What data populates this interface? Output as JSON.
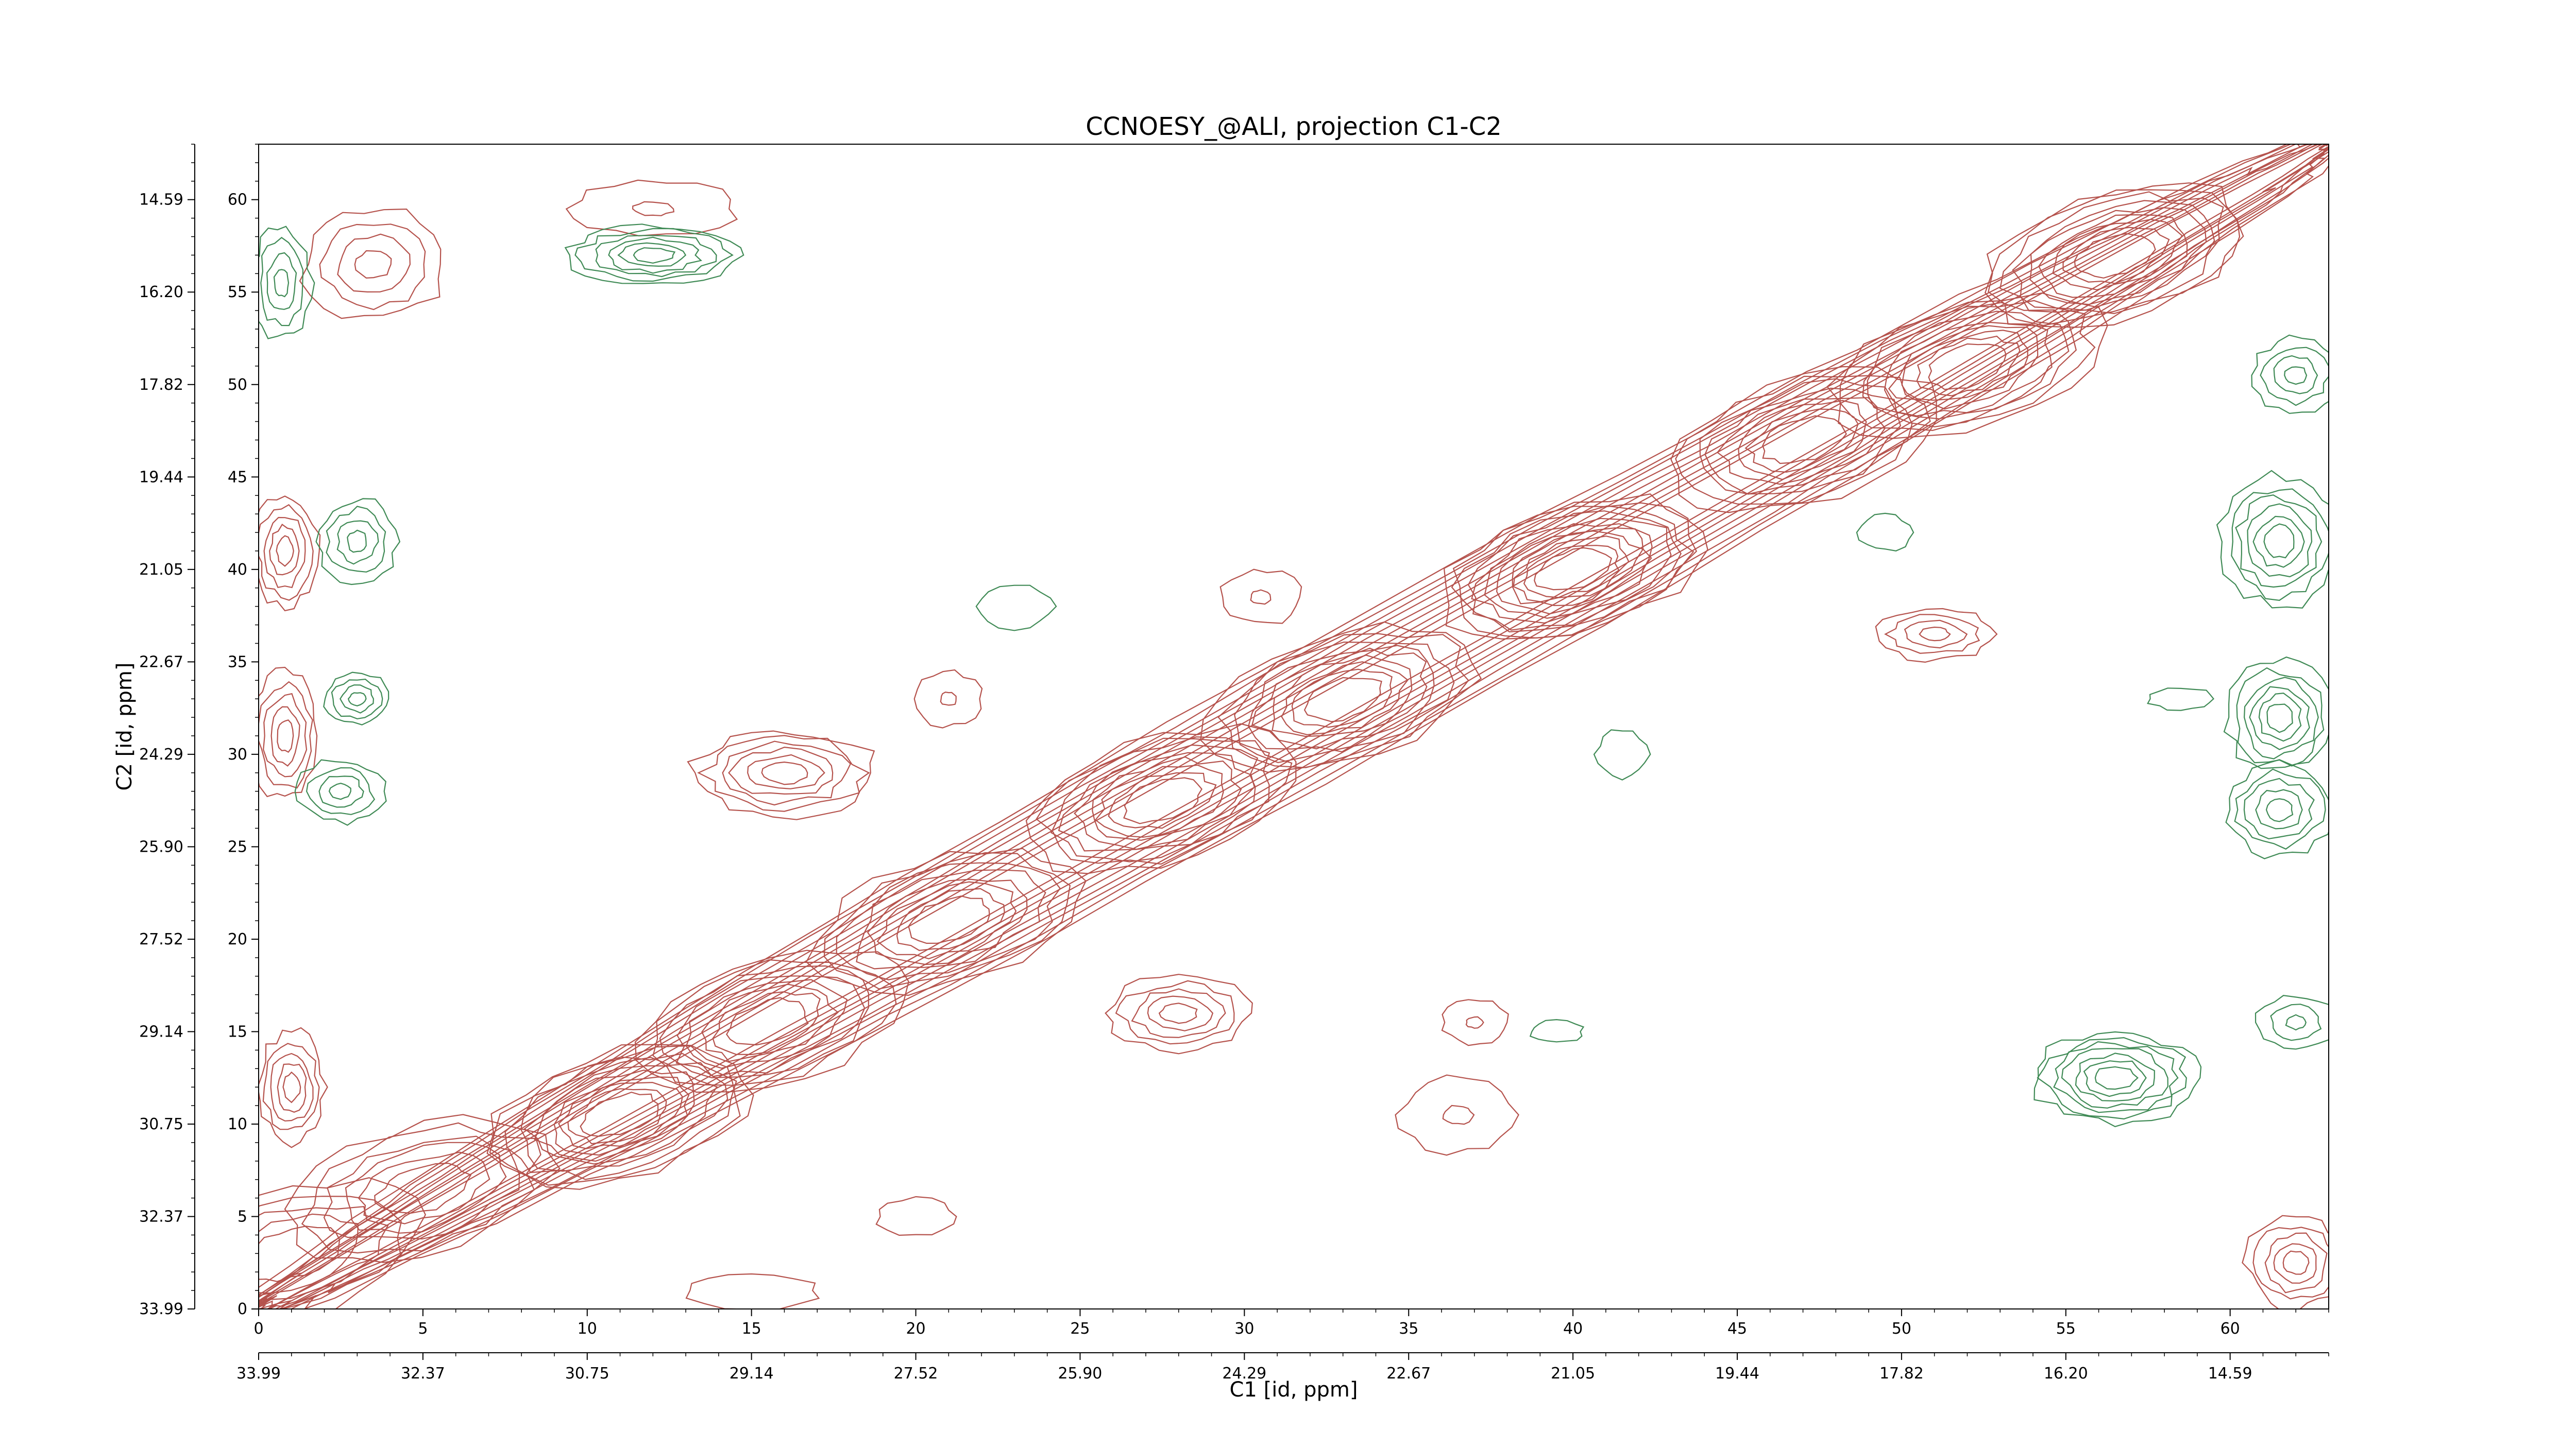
{
  "colors": {
    "positive": "#b5524c",
    "negative": "#3f8a55",
    "axis": "#000000",
    "background": "#ffffff"
  },
  "chart_data": {
    "type": "contour",
    "title": "CCNOESY_@ALI, projection C1-C2",
    "xlabel": "C1 [id, ppm]",
    "ylabel": "C2 [id, ppm]",
    "xlim": [
      0,
      63
    ],
    "ylim": [
      0,
      63
    ],
    "x_ticks": [
      0,
      5,
      10,
      15,
      20,
      25,
      30,
      35,
      40,
      45,
      50,
      55,
      60
    ],
    "y_ticks": [
      0,
      5,
      10,
      15,
      20,
      25,
      30,
      35,
      40,
      45,
      50,
      55,
      60
    ],
    "x_ppm_ticks": [
      {
        "pos": 0,
        "label": "33.99"
      },
      {
        "pos": 5,
        "label": "32.37"
      },
      {
        "pos": 10,
        "label": "30.75"
      },
      {
        "pos": 15,
        "label": "29.14"
      },
      {
        "pos": 20,
        "label": "27.52"
      },
      {
        "pos": 25,
        "label": "25.90"
      },
      {
        "pos": 30,
        "label": "24.29"
      },
      {
        "pos": 35,
        "label": "22.67"
      },
      {
        "pos": 40,
        "label": "21.05"
      },
      {
        "pos": 45,
        "label": "19.44"
      },
      {
        "pos": 50,
        "label": "17.82"
      },
      {
        "pos": 55,
        "label": "16.20"
      },
      {
        "pos": 60,
        "label": "14.59"
      }
    ],
    "y_ppm_ticks": [
      {
        "pos": 0,
        "label": "33.99"
      },
      {
        "pos": 5,
        "label": "32.37"
      },
      {
        "pos": 10,
        "label": "30.75"
      },
      {
        "pos": 15,
        "label": "29.14"
      },
      {
        "pos": 20,
        "label": "27.52"
      },
      {
        "pos": 25,
        "label": "25.90"
      },
      {
        "pos": 30,
        "label": "24.29"
      },
      {
        "pos": 35,
        "label": "22.67"
      },
      {
        "pos": 40,
        "label": "21.05"
      },
      {
        "pos": 45,
        "label": "19.44"
      },
      {
        "pos": 50,
        "label": "17.82"
      },
      {
        "pos": 55,
        "label": "16.20"
      },
      {
        "pos": 60,
        "label": "14.59"
      }
    ],
    "diagonal_peaks": [
      {
        "x": 1,
        "y": 3,
        "levels": 5
      },
      {
        "x": 5,
        "y": 6.5,
        "levels": 6
      },
      {
        "x": 11,
        "y": 10.5,
        "levels": 10
      },
      {
        "x": 15.5,
        "y": 15.5,
        "levels": 8
      },
      {
        "x": 21,
        "y": 21,
        "levels": 8
      },
      {
        "x": 27.5,
        "y": 27.5,
        "levels": 9
      },
      {
        "x": 33,
        "y": 33,
        "levels": 9
      },
      {
        "x": 40,
        "y": 40,
        "levels": 11
      },
      {
        "x": 47,
        "y": 47,
        "levels": 8
      },
      {
        "x": 52,
        "y": 51,
        "levels": 9
      },
      {
        "x": 56.5,
        "y": 57,
        "levels": 9
      }
    ],
    "positive_cross_peaks": [
      {
        "x": 3.5,
        "y": 56.5,
        "rx": 2.2,
        "ry": 3.0,
        "levels": 4
      },
      {
        "x": 16,
        "y": 29,
        "rx": 2.8,
        "ry": 2.3,
        "levels": 6
      },
      {
        "x": 28,
        "y": 16,
        "rx": 2.2,
        "ry": 2.0,
        "levels": 5
      },
      {
        "x": 51,
        "y": 36.5,
        "rx": 1.8,
        "ry": 1.4,
        "levels": 4
      },
      {
        "x": 12,
        "y": 59.5,
        "rx": 2.5,
        "ry": 1.5,
        "levels": 2
      },
      {
        "x": 21,
        "y": 33,
        "rx": 1.0,
        "ry": 1.5,
        "levels": 2
      },
      {
        "x": 30.5,
        "y": 38.5,
        "rx": 1.2,
        "ry": 1.5,
        "levels": 2
      },
      {
        "x": 37,
        "y": 15.5,
        "rx": 1.0,
        "ry": 1.2,
        "levels": 2
      },
      {
        "x": 36.5,
        "y": 10.5,
        "rx": 1.8,
        "ry": 2.0,
        "levels": 2
      },
      {
        "x": 20,
        "y": 5,
        "rx": 1.2,
        "ry": 1.0,
        "levels": 1
      },
      {
        "x": 15,
        "y": 1.0,
        "rx": 2.0,
        "ry": 1.0,
        "levels": 1
      },
      {
        "x": 62,
        "y": 2.5,
        "rx": 1.5,
        "ry": 2.5,
        "levels": 5
      },
      {
        "x": 1,
        "y": 12,
        "rx": 1.0,
        "ry": 3.0,
        "levels": 5
      },
      {
        "x": 0.8,
        "y": 41,
        "rx": 1.0,
        "ry": 3.0,
        "levels": 5
      },
      {
        "x": 0.8,
        "y": 31,
        "rx": 1.0,
        "ry": 3.5,
        "levels": 5
      }
    ],
    "negative_cross_peaks": [
      {
        "x": 12,
        "y": 57,
        "rx": 2.6,
        "ry": 1.6,
        "levels": 6
      },
      {
        "x": 3,
        "y": 41.5,
        "rx": 1.2,
        "ry": 2.3,
        "levels": 4
      },
      {
        "x": 3,
        "y": 33,
        "rx": 1.0,
        "ry": 1.4,
        "levels": 4
      },
      {
        "x": 2.5,
        "y": 28,
        "rx": 1.3,
        "ry": 1.7,
        "levels": 4
      },
      {
        "x": 56.5,
        "y": 12.5,
        "rx": 2.5,
        "ry": 2.5,
        "levels": 7
      },
      {
        "x": 61.5,
        "y": 41.5,
        "rx": 1.8,
        "ry": 3.5,
        "levels": 6
      },
      {
        "x": 61.5,
        "y": 32,
        "rx": 1.6,
        "ry": 3.0,
        "levels": 6
      },
      {
        "x": 61.5,
        "y": 27,
        "rx": 1.6,
        "ry": 2.5,
        "levels": 5
      },
      {
        "x": 62,
        "y": 50.5,
        "rx": 1.3,
        "ry": 2.0,
        "levels": 4
      },
      {
        "x": 62,
        "y": 15.5,
        "rx": 1.2,
        "ry": 1.5,
        "levels": 3
      },
      {
        "x": 0.7,
        "y": 55.5,
        "rx": 0.9,
        "ry": 3.0,
        "levels": 4
      },
      {
        "x": 23,
        "y": 38,
        "rx": 1.2,
        "ry": 1.2,
        "levels": 1
      },
      {
        "x": 41.5,
        "y": 30,
        "rx": 0.8,
        "ry": 1.3,
        "levels": 1
      },
      {
        "x": 39.5,
        "y": 15.0,
        "rx": 0.8,
        "ry": 0.6,
        "levels": 1
      },
      {
        "x": 49.5,
        "y": 42,
        "rx": 0.8,
        "ry": 1.0,
        "levels": 1
      },
      {
        "x": 58.5,
        "y": 33,
        "rx": 1.0,
        "ry": 0.6,
        "levels": 1
      }
    ],
    "grid": false,
    "legend": "none"
  }
}
